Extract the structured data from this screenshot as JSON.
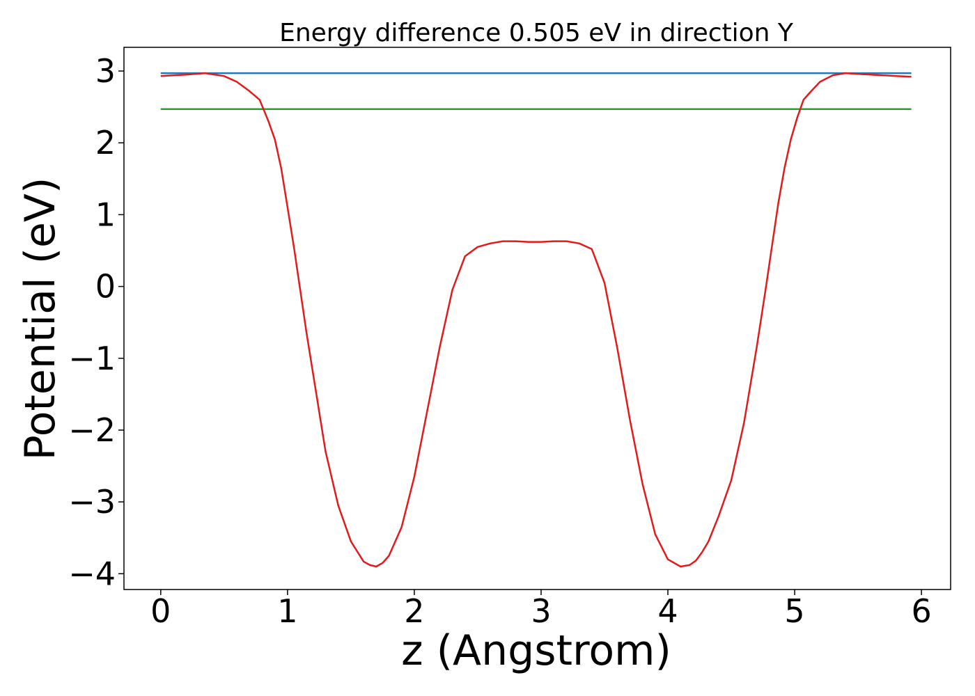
{
  "chart_data": {
    "type": "line",
    "title": "Energy difference 0.505 eV in direction Y",
    "xlabel": "z (Angstrom)",
    "ylabel": "Potential (eV)",
    "xlim": [
      -0.29,
      6.23
    ],
    "ylim": [
      -4.22,
      3.33
    ],
    "x_ticks": [
      0,
      1,
      2,
      3,
      4,
      5,
      6
    ],
    "y_ticks": [
      -4,
      -3,
      -2,
      -1,
      0,
      1,
      2,
      3
    ],
    "x_tick_labels": [
      "0",
      "1",
      "2",
      "3",
      "4",
      "5",
      "6"
    ],
    "y_tick_labels": [
      "−4",
      "−3",
      "−2",
      "−1",
      "0",
      "1",
      "2",
      "3"
    ],
    "grid": false,
    "series": [
      {
        "color": "#1f77b4",
        "x": [
          0,
          5.92
        ],
        "y": [
          2.97,
          2.97
        ]
      },
      {
        "color": "#2ca02c",
        "x": [
          0,
          5.92
        ],
        "y": [
          2.47,
          2.47
        ]
      },
      {
        "color": "#e31a1c",
        "x": [
          0.0,
          0.2,
          0.35,
          0.5,
          0.6,
          0.7,
          0.78,
          0.85,
          0.9,
          0.95,
          1.0,
          1.05,
          1.1,
          1.15,
          1.2,
          1.3,
          1.4,
          1.5,
          1.6,
          1.65,
          1.7,
          1.75,
          1.8,
          1.9,
          2.0,
          2.1,
          2.2,
          2.3,
          2.4,
          2.5,
          2.6,
          2.7,
          2.8,
          2.9,
          3.0,
          3.1,
          3.2,
          3.3,
          3.4,
          3.5,
          3.6,
          3.7,
          3.8,
          3.9,
          4.0,
          4.1,
          4.17,
          4.22,
          4.27,
          4.32,
          4.4,
          4.5,
          4.6,
          4.7,
          4.77,
          4.82,
          4.87,
          4.92,
          4.97,
          5.02,
          5.07,
          5.12,
          5.2,
          5.3,
          5.4,
          5.5,
          5.6,
          5.7,
          5.8,
          5.92
        ],
        "y": [
          2.93,
          2.95,
          2.97,
          2.93,
          2.85,
          2.72,
          2.6,
          2.3,
          2.05,
          1.65,
          1.1,
          0.55,
          -0.05,
          -0.65,
          -1.2,
          -2.3,
          -3.05,
          -3.55,
          -3.83,
          -3.88,
          -3.9,
          -3.85,
          -3.75,
          -3.35,
          -2.65,
          -1.75,
          -0.85,
          -0.05,
          0.42,
          0.55,
          0.6,
          0.63,
          0.63,
          0.62,
          0.62,
          0.63,
          0.63,
          0.6,
          0.52,
          0.05,
          -0.85,
          -1.85,
          -2.75,
          -3.45,
          -3.8,
          -3.9,
          -3.88,
          -3.82,
          -3.7,
          -3.55,
          -3.2,
          -2.7,
          -1.9,
          -0.85,
          -0.05,
          0.55,
          1.15,
          1.65,
          2.05,
          2.35,
          2.6,
          2.7,
          2.85,
          2.94,
          2.97,
          2.96,
          2.95,
          2.94,
          2.93,
          2.92
        ]
      }
    ]
  }
}
